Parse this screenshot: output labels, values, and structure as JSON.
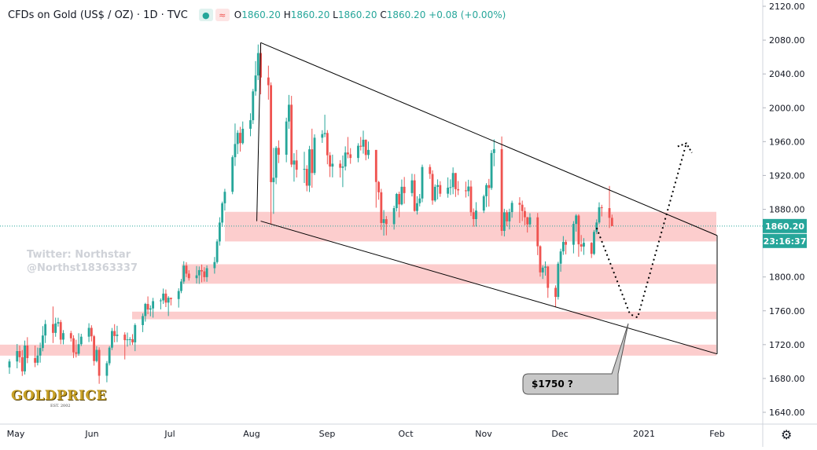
{
  "header": {
    "title": "CFDs on Gold (US$ / OZ) · 1D · TVC",
    "o_label": "O",
    "o_value": "1860.20",
    "h_label": "H",
    "h_value": "1860.20",
    "l_label": "L",
    "l_value": "1860.20",
    "c_label": "C",
    "c_value": "1860.20",
    "change": "+0.08 (+0.00%)"
  },
  "watermark": {
    "line1": "Twitter: Northstar",
    "line2": "@Northst18363337"
  },
  "logo": {
    "text": "GOLDPRICE",
    "sub": "EST. 2002"
  },
  "price_badge": "1860.20",
  "countdown_badge": "23:16:37",
  "callout": "$1750 ?",
  "colors": {
    "up": "#26a69a",
    "down": "#ef5350",
    "zone": "#fbc4c4",
    "badge": "#26a69a"
  },
  "chart_data": {
    "type": "candlestick",
    "title": "CFDs on Gold (US$ / OZ)",
    "timeframe": "1D",
    "source": "TVC",
    "x_ticks": [
      "May",
      "Jun",
      "Jul",
      "Aug",
      "Sep",
      "Oct",
      "Nov",
      "Dec",
      "2021",
      "Feb"
    ],
    "y_ticks": [
      1640,
      1680,
      1720,
      1760,
      1800,
      1840,
      1880,
      1920,
      1960,
      2000,
      2040,
      2080,
      2120
    ],
    "ylim": [
      1626,
      2126
    ],
    "last_price": 1860.2,
    "support_zones": [
      [
        1707,
        1720
      ],
      [
        1750,
        1759
      ],
      [
        1792,
        1815
      ],
      [
        1842,
        1877
      ]
    ],
    "channel": {
      "upper": [
        [
          "2020-08-07",
          2077
        ],
        [
          "2021-02-01",
          1849
        ]
      ],
      "lower": [
        [
          "2020-08-07",
          1866
        ],
        [
          "2021-02-01",
          1709
        ]
      ]
    },
    "projection_path": [
      [
        "2020-12-16",
        1858
      ],
      [
        "2020-12-29",
        1756
      ],
      [
        "2021-01-01",
        1752
      ],
      [
        "2021-01-20",
        1958
      ]
    ],
    "annotations": [
      "$1750 ?"
    ],
    "candles": [
      [
        "2020-05-01",
        1693.1,
        1702.8,
        1685.5,
        1700.1
      ],
      [
        "2020-05-04",
        1700.1,
        1720.7,
        1692.0,
        1712.4
      ],
      [
        "2020-05-05",
        1712.4,
        1718.9,
        1698.7,
        1705.2
      ],
      [
        "2020-05-06",
        1705.2,
        1713.6,
        1683.0,
        1688.4
      ],
      [
        "2020-05-07",
        1688.4,
        1724.8,
        1684.7,
        1718.9
      ],
      [
        "2020-05-08",
        1718.9,
        1728.8,
        1698.1,
        1704.1
      ],
      [
        "2020-05-11",
        1704.1,
        1718.9,
        1693.4,
        1698.6
      ],
      [
        "2020-05-12",
        1698.6,
        1716.5,
        1695.5,
        1707.1
      ],
      [
        "2020-05-13",
        1707.1,
        1722.4,
        1698.7,
        1716.0
      ],
      [
        "2020-05-14",
        1716.0,
        1741.9,
        1712.1,
        1730.8
      ],
      [
        "2020-05-15",
        1730.8,
        1749.2,
        1721.9,
        1744.3
      ],
      [
        "2020-05-18",
        1744.3,
        1765.1,
        1721.9,
        1733.9
      ],
      [
        "2020-05-19",
        1733.9,
        1751.9,
        1729.3,
        1745.0
      ],
      [
        "2020-05-20",
        1745.0,
        1751.8,
        1741.3,
        1746.6
      ],
      [
        "2020-05-21",
        1746.6,
        1749.2,
        1720.4,
        1725.9
      ],
      [
        "2020-05-22",
        1725.9,
        1737.2,
        1720.3,
        1733.6
      ],
      [
        "2020-05-25",
        1733.6,
        1736.3,
        1723.6,
        1727.5
      ],
      [
        "2020-05-26",
        1727.5,
        1731.1,
        1704.2,
        1710.9
      ],
      [
        "2020-05-27",
        1710.9,
        1725.8,
        1704.8,
        1709.2
      ],
      [
        "2020-05-28",
        1709.2,
        1733.5,
        1706.9,
        1720.5
      ],
      [
        "2020-05-29",
        1720.5,
        1732.8,
        1718.3,
        1729.4
      ],
      [
        "2020-06-01",
        1729.4,
        1745.3,
        1723.0,
        1739.8
      ],
      [
        "2020-06-02",
        1739.8,
        1742.9,
        1723.8,
        1729.9
      ],
      [
        "2020-06-03",
        1729.9,
        1731.5,
        1695.2,
        1700.6
      ],
      [
        "2020-06-04",
        1700.6,
        1718.2,
        1699.0,
        1713.8
      ],
      [
        "2020-06-05",
        1713.8,
        1716.8,
        1673.7,
        1683.2
      ],
      [
        "2020-06-08",
        1683.2,
        1700.6,
        1675.5,
        1698.0
      ],
      [
        "2020-06-09",
        1698.0,
        1718.3,
        1695.4,
        1716.4
      ],
      [
        "2020-06-10",
        1716.4,
        1739.7,
        1713.6,
        1736.1
      ],
      [
        "2020-06-11",
        1736.1,
        1744.2,
        1722.7,
        1730.2
      ],
      [
        "2020-06-12",
        1730.2,
        1742.3,
        1723.0,
        1731.8
      ],
      [
        "2020-06-15",
        1731.8,
        1734.6,
        1702.5,
        1725.3
      ],
      [
        "2020-06-16",
        1725.3,
        1734.2,
        1717.6,
        1726.2
      ],
      [
        "2020-06-17",
        1726.2,
        1728.9,
        1719.3,
        1726.4
      ],
      [
        "2020-06-18",
        1726.4,
        1732.4,
        1719.6,
        1722.7
      ],
      [
        "2020-06-19",
        1722.7,
        1745.2,
        1712.3,
        1743.1
      ],
      [
        "2020-06-22",
        1743.1,
        1756.9,
        1734.8,
        1753.8
      ],
      [
        "2020-06-23",
        1753.8,
        1769.4,
        1747.2,
        1768.1
      ],
      [
        "2020-06-24",
        1768.1,
        1777.0,
        1756.0,
        1761.5
      ],
      [
        "2020-06-25",
        1761.5,
        1766.4,
        1753.5,
        1762.8
      ],
      [
        "2020-06-26",
        1762.8,
        1775.3,
        1751.9,
        1771.4
      ],
      [
        "2020-06-29",
        1771.4,
        1774.6,
        1761.7,
        1772.3
      ],
      [
        "2020-06-30",
        1772.3,
        1786.3,
        1768.1,
        1780.3
      ],
      [
        "2020-07-01",
        1780.3,
        1785.2,
        1764.4,
        1769.7
      ],
      [
        "2020-07-02",
        1769.7,
        1777.3,
        1753.8,
        1775.4
      ],
      [
        "2020-07-03",
        1775.4,
        1775.4,
        1766.4,
        1773.9
      ],
      [
        "2020-07-06",
        1773.9,
        1786.6,
        1763.8,
        1783.4
      ],
      [
        "2020-07-07",
        1783.4,
        1797.7,
        1780.8,
        1794.6
      ],
      [
        "2020-07-08",
        1794.6,
        1818.6,
        1791.7,
        1813.4
      ],
      [
        "2020-07-09",
        1813.4,
        1817.4,
        1799.8,
        1803.9
      ],
      [
        "2020-07-10",
        1803.9,
        1807.9,
        1795.7,
        1798.6
      ],
      [
        "2020-07-13",
        1798.6,
        1812.9,
        1792.2,
        1801.9
      ],
      [
        "2020-07-14",
        1801.9,
        1812.4,
        1791.8,
        1808.1
      ],
      [
        "2020-07-15",
        1808.1,
        1814.7,
        1793.7,
        1806.6
      ],
      [
        "2020-07-16",
        1806.6,
        1811.6,
        1794.5,
        1799.8
      ],
      [
        "2020-07-17",
        1799.8,
        1813.7,
        1794.3,
        1810.4
      ],
      [
        "2020-07-20",
        1810.4,
        1823.6,
        1803.9,
        1817.6
      ],
      [
        "2020-07-21",
        1817.6,
        1844.7,
        1815.7,
        1842.0
      ],
      [
        "2020-07-22",
        1842.0,
        1870.6,
        1837.1,
        1864.3
      ],
      [
        "2020-07-23",
        1864.3,
        1889.1,
        1859.2,
        1887.1
      ],
      [
        "2020-07-24",
        1887.1,
        1904.2,
        1878.6,
        1900.7
      ],
      [
        "2020-07-27",
        1900.7,
        1943.9,
        1897.8,
        1941.6
      ],
      [
        "2020-07-28",
        1941.6,
        1981.4,
        1931.2,
        1957.2
      ],
      [
        "2020-07-29",
        1957.2,
        1973.5,
        1945.3,
        1970.4
      ],
      [
        "2020-07-30",
        1970.4,
        1977.5,
        1948.2,
        1958.2
      ],
      [
        "2020-07-31",
        1958.2,
        1983.8,
        1956.6,
        1975.2
      ],
      [
        "2020-08-03",
        1975.2,
        1993.5,
        1966.4,
        1985.3
      ],
      [
        "2020-08-04",
        1985.3,
        2022.3,
        1980.8,
        2019.4
      ],
      [
        "2020-08-05",
        2019.4,
        2055.2,
        2014.3,
        2038.2
      ],
      [
        "2020-08-06",
        2038.2,
        2074.8,
        2032.8,
        2064.7
      ],
      [
        "2020-08-07",
        2064.7,
        2075.3,
        2015.9,
        2035.8
      ],
      [
        "2020-08-10",
        2035.8,
        2049.8,
        2009.6,
        2026.7
      ],
      [
        "2020-08-11",
        2026.7,
        2030.1,
        1862.4,
        1912.1
      ],
      [
        "2020-08-12",
        1912.1,
        1952.6,
        1874.6,
        1917.3
      ],
      [
        "2020-08-13",
        1917.3,
        1954.7,
        1909.7,
        1952.6
      ],
      [
        "2020-08-14",
        1952.6,
        1961.5,
        1934.6,
        1944.5
      ],
      [
        "2020-08-17",
        1944.5,
        1988.3,
        1935.6,
        1983.8
      ],
      [
        "2020-08-18",
        1983.8,
        2015.2,
        1975.2,
        2003.6
      ],
      [
        "2020-08-19",
        2003.6,
        2014.1,
        1929.8,
        1932.9
      ],
      [
        "2020-08-20",
        1932.9,
        1946.3,
        1912.7,
        1937.7
      ],
      [
        "2020-08-21",
        1937.7,
        1950.2,
        1917.6,
        1926.8
      ],
      [
        "2020-08-24",
        1926.8,
        1948.0,
        1911.1,
        1927.8
      ],
      [
        "2020-08-25",
        1927.8,
        1932.1,
        1901.3,
        1907.9
      ],
      [
        "2020-08-26",
        1907.9,
        1955.0,
        1900.4,
        1950.9
      ],
      [
        "2020-08-27",
        1950.9,
        1975.3,
        1905.5,
        1922.9
      ],
      [
        "2020-08-28",
        1922.9,
        1968.6,
        1920.5,
        1964.6
      ],
      [
        "2020-08-31",
        1964.6,
        1973.5,
        1958.5,
        1968.9
      ],
      [
        "2020-09-01",
        1968.9,
        1991.8,
        1965.3,
        1970.2
      ],
      [
        "2020-09-02",
        1970.2,
        1973.6,
        1933.2,
        1943.9
      ],
      [
        "2020-09-03",
        1943.9,
        1947.6,
        1918.1,
        1930.5
      ],
      [
        "2020-09-04",
        1930.5,
        1944.6,
        1917.7,
        1933.9
      ],
      [
        "2020-09-07",
        1933.9,
        1938.1,
        1917.6,
        1929.1
      ],
      [
        "2020-09-08",
        1929.1,
        1943.6,
        1906.2,
        1930.6
      ],
      [
        "2020-09-09",
        1930.6,
        1954.4,
        1925.9,
        1947.1
      ],
      [
        "2020-09-10",
        1947.1,
        1965.5,
        1940.3,
        1945.0
      ],
      [
        "2020-09-11",
        1945.0,
        1952.3,
        1933.8,
        1940.7
      ],
      [
        "2020-09-14",
        1940.7,
        1958.1,
        1935.6,
        1955.1
      ],
      [
        "2020-09-15",
        1955.1,
        1965.5,
        1949.5,
        1954.0
      ],
      [
        "2020-09-16",
        1954.0,
        1973.0,
        1945.8,
        1962.2
      ],
      [
        "2020-09-17",
        1962.2,
        1962.6,
        1937.9,
        1944.2
      ],
      [
        "2020-09-18",
        1944.2,
        1960.1,
        1939.6,
        1950.2
      ],
      [
        "2020-09-21",
        1950.2,
        1950.2,
        1881.9,
        1912.3
      ],
      [
        "2020-09-22",
        1912.3,
        1913.6,
        1891.3,
        1900.1
      ],
      [
        "2020-09-23",
        1900.1,
        1904.2,
        1855.7,
        1863.8
      ],
      [
        "2020-09-24",
        1863.8,
        1879.1,
        1848.9,
        1868.3
      ],
      [
        "2020-09-25",
        1868.3,
        1872.0,
        1849.2,
        1862.5
      ],
      [
        "2020-09-28",
        1862.5,
        1884.3,
        1856.0,
        1881.4
      ],
      [
        "2020-09-29",
        1881.4,
        1899.4,
        1877.4,
        1898.1
      ],
      [
        "2020-09-30",
        1898.1,
        1900.9,
        1870.5,
        1885.8
      ],
      [
        "2020-10-01",
        1885.8,
        1915.2,
        1884.7,
        1906.6
      ],
      [
        "2020-10-02",
        1906.6,
        1918.2,
        1886.6,
        1899.2
      ],
      [
        "2020-10-05",
        1899.2,
        1922.0,
        1895.2,
        1914.2
      ],
      [
        "2020-10-06",
        1914.2,
        1921.6,
        1877.1,
        1878.0
      ],
      [
        "2020-10-07",
        1878.0,
        1895.5,
        1873.8,
        1887.2
      ],
      [
        "2020-10-08",
        1887.2,
        1898.1,
        1883.4,
        1892.8
      ],
      [
        "2020-10-09",
        1892.8,
        1932.8,
        1888.4,
        1930.0
      ],
      [
        "2020-10-12",
        1930.0,
        1933.1,
        1915.9,
        1921.8
      ],
      [
        "2020-10-13",
        1921.8,
        1926.1,
        1885.4,
        1890.4
      ],
      [
        "2020-10-14",
        1890.4,
        1909.4,
        1888.6,
        1906.6
      ],
      [
        "2020-10-15",
        1906.6,
        1915.4,
        1891.7,
        1908.6
      ],
      [
        "2020-10-16",
        1908.6,
        1913.2,
        1894.7,
        1898.4
      ],
      [
        "2020-10-19",
        1898.4,
        1917.7,
        1893.7,
        1905.6
      ],
      [
        "2020-10-20",
        1905.6,
        1915.4,
        1896.9,
        1906.2
      ],
      [
        "2020-10-21",
        1906.2,
        1929.5,
        1897.8,
        1922.9
      ],
      [
        "2020-10-22",
        1922.9,
        1923.0,
        1894.6,
        1903.8
      ],
      [
        "2020-10-23",
        1903.8,
        1913.4,
        1896.8,
        1902.4
      ],
      [
        "2020-10-26",
        1902.4,
        1912.7,
        1893.9,
        1901.4
      ],
      [
        "2020-10-27",
        1901.4,
        1914.9,
        1895.3,
        1906.9
      ],
      [
        "2020-10-28",
        1906.9,
        1914.1,
        1872.1,
        1876.5
      ],
      [
        "2020-10-29",
        1876.5,
        1881.0,
        1859.4,
        1868.4
      ],
      [
        "2020-10-30",
        1868.4,
        1888.4,
        1859.6,
        1878.5
      ],
      [
        "2020-11-02",
        1878.5,
        1897.3,
        1875.6,
        1895.4
      ],
      [
        "2020-11-03",
        1895.4,
        1910.9,
        1882.6,
        1908.6
      ],
      [
        "2020-11-04",
        1908.6,
        1915.9,
        1883.2,
        1905.2
      ],
      [
        "2020-11-05",
        1905.2,
        1949.9,
        1902.9,
        1946.5
      ],
      [
        "2020-11-06",
        1946.5,
        1962.7,
        1930.9,
        1951.1
      ],
      [
        "2020-11-09",
        1951.1,
        1966.1,
        1848.7,
        1854.5
      ],
      [
        "2020-11-10",
        1854.5,
        1880.6,
        1847.9,
        1876.4
      ],
      [
        "2020-11-11",
        1876.4,
        1879.1,
        1859.9,
        1865.8
      ],
      [
        "2020-11-12",
        1865.8,
        1880.7,
        1856.2,
        1876.7
      ],
      [
        "2020-11-13",
        1876.7,
        1890.2,
        1870.0,
        1887.6
      ],
      [
        "2020-11-16",
        1887.6,
        1894.3,
        1863.8,
        1885.4
      ],
      [
        "2020-11-17",
        1885.4,
        1890.3,
        1866.1,
        1877.9
      ],
      [
        "2020-11-18",
        1877.9,
        1882.3,
        1861.1,
        1870.6
      ],
      [
        "2020-11-19",
        1870.6,
        1871.0,
        1852.5,
        1862.1
      ],
      [
        "2020-11-20",
        1862.1,
        1875.3,
        1858.7,
        1870.5
      ],
      [
        "2020-11-23",
        1870.5,
        1875.6,
        1825.8,
        1836.3
      ],
      [
        "2020-11-24",
        1836.3,
        1837.4,
        1800.4,
        1805.4
      ],
      [
        "2020-11-25",
        1805.4,
        1813.7,
        1797.6,
        1811.0
      ],
      [
        "2020-11-26",
        1811.0,
        1818.4,
        1801.5,
        1812.3
      ],
      [
        "2020-11-27",
        1812.3,
        1813.0,
        1775.3,
        1787.1
      ],
      [
        "2020-11-30",
        1787.1,
        1790.1,
        1764.2,
        1776.4
      ],
      [
        "2020-12-01",
        1776.4,
        1817.9,
        1773.3,
        1815.7
      ],
      [
        "2020-12-02",
        1815.7,
        1833.4,
        1806.2,
        1830.2
      ],
      [
        "2020-12-03",
        1830.2,
        1848.3,
        1826.1,
        1841.4
      ],
      [
        "2020-12-04",
        1841.4,
        1843.8,
        1826.7,
        1838.1
      ],
      [
        "2020-12-07",
        1838.1,
        1866.0,
        1827.9,
        1862.7
      ],
      [
        "2020-12-08",
        1862.7,
        1874.3,
        1853.6,
        1872.6
      ],
      [
        "2020-12-09",
        1872.6,
        1874.2,
        1823.9,
        1838.6
      ],
      [
        "2020-12-10",
        1838.6,
        1849.6,
        1830.0,
        1835.9
      ],
      [
        "2020-12-11",
        1835.9,
        1845.9,
        1826.1,
        1840.4
      ],
      [
        "2020-12-14",
        1840.4,
        1841.2,
        1822.4,
        1827.3
      ],
      [
        "2020-12-15",
        1827.3,
        1855.6,
        1825.9,
        1853.3
      ],
      [
        "2020-12-16",
        1853.3,
        1868.1,
        1850.6,
        1864.4
      ],
      [
        "2020-12-17",
        1864.4,
        1888.2,
        1862.4,
        1882.4
      ],
      [
        "2020-12-18",
        1882.4,
        1885.3,
        1871.6,
        1881.4
      ],
      [
        "2020-12-21",
        1881.4,
        1907.6,
        1857.9,
        1869.9
      ],
      [
        "2020-12-22",
        1869.9,
        1873.7,
        1860.2,
        1860.1
      ]
    ]
  }
}
